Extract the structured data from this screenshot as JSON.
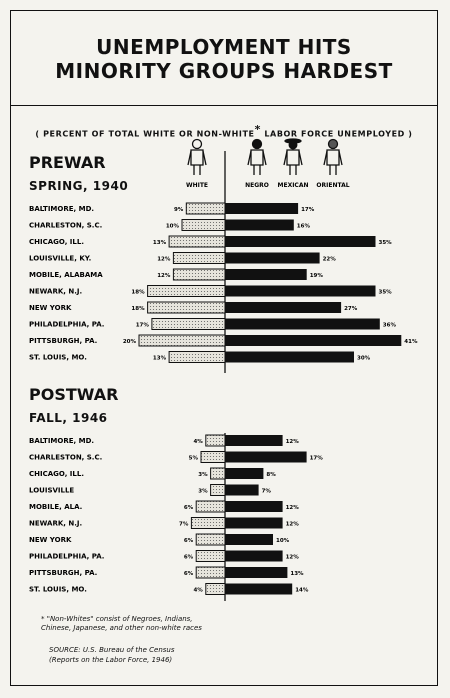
{
  "title": [
    "UNEMPLOYMENT HITS",
    "MINORITY GROUPS HARDEST"
  ],
  "subtitle_pre": "( PERCENT OF TOTAL WHITE OR NON-WHITE",
  "subtitle_star": "*",
  "subtitle_post": "LABOR FORCE UNEMPLOYED )",
  "legend": {
    "white": "WHITE",
    "negro": "NEGRO",
    "mexican": "MEXICAN",
    "oriental": "ORIENTAL"
  },
  "colors": {
    "ink": "#111111",
    "paper": "#f4f3ee",
    "white_bar_fill": "#e6e4dc"
  },
  "icons": {
    "white": "person-icon",
    "negro": "person-icon",
    "mexican": "person-sombrero-icon",
    "oriental": "person-icon"
  },
  "chart_data": [
    {
      "type": "bar",
      "orientation": "horizontal-diverging",
      "title": "PREWAR",
      "subtitle": "SPRING, 1940",
      "categories": [
        "BALTIMORE, MD.",
        "CHARLESTON, S.C.",
        "CHICAGO, ILL.",
        "LOUISVILLE, KY.",
        "MOBILE, ALABAMA",
        "NEWARK, N.J.",
        "NEW YORK",
        "PHILADELPHIA, PA.",
        "PITTSBURGH, PA.",
        "ST. LOUIS, MO."
      ],
      "series": [
        {
          "name": "WHITE",
          "values": [
            9,
            10,
            13,
            12,
            12,
            18,
            18,
            17,
            20,
            13
          ]
        },
        {
          "name": "NON-WHITE",
          "values": [
            17,
            16,
            35,
            22,
            19,
            35,
            27,
            36,
            41,
            30
          ]
        }
      ],
      "unit": "%"
    },
    {
      "type": "bar",
      "orientation": "horizontal-diverging",
      "title": "POSTWAR",
      "subtitle": "FALL, 1946",
      "categories": [
        "BALTIMORE, MD.",
        "CHARLESTON, S.C.",
        "CHICAGO, ILL.",
        "LOUISVILLE",
        "MOBILE, ALA.",
        "NEWARK, N.J.",
        "NEW YORK",
        "PHILADELPHIA, PA.",
        "PITTSBURGH, PA.",
        "ST. LOUIS, MO."
      ],
      "series": [
        {
          "name": "WHITE",
          "values": [
            4,
            5,
            3,
            3,
            6,
            7,
            6,
            6,
            6,
            4
          ]
        },
        {
          "name": "NON-WHITE",
          "values": [
            12,
            17,
            8,
            7,
            12,
            12,
            10,
            12,
            13,
            14
          ]
        }
      ],
      "unit": "%"
    }
  ],
  "footnote": [
    "* \"Non-Whites\" consist of Negroes, Indians,",
    "Chinese, Japanese, and other non-white races"
  ],
  "source": [
    "SOURCE: U.S. Bureau of the Census",
    "(Reports on the Labor Force, 1946)"
  ]
}
